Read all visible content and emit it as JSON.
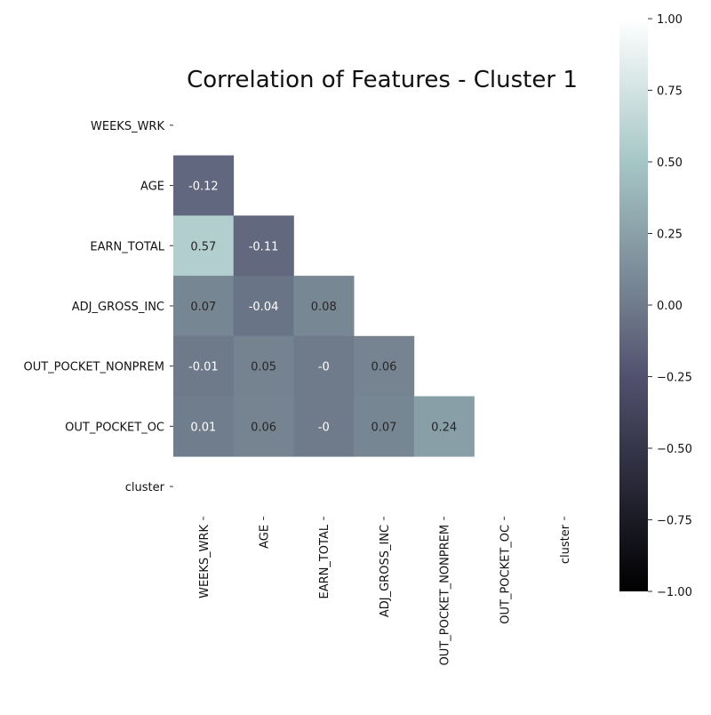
{
  "chart_data": {
    "type": "heatmap",
    "title": "Correlation of Features - Cluster 1",
    "xlabel": "",
    "ylabel": "",
    "row_labels": [
      "WEEKS_WRK",
      "AGE",
      "EARN_TOTAL",
      "ADJ_GROSS_INC",
      "OUT_POCKET_NONPREM",
      "OUT_POCKET_OC",
      "cluster"
    ],
    "col_labels": [
      "WEEKS_WRK",
      "AGE",
      "EARN_TOTAL",
      "ADJ_GROSS_INC",
      "OUT_POCKET_NONPREM",
      "OUT_POCKET_OC",
      "cluster"
    ],
    "cells": [
      {
        "row": 1,
        "col": 0,
        "value": -0.12,
        "label": "-0.12"
      },
      {
        "row": 2,
        "col": 0,
        "value": 0.57,
        "label": "0.57"
      },
      {
        "row": 2,
        "col": 1,
        "value": -0.11,
        "label": "-0.11"
      },
      {
        "row": 3,
        "col": 0,
        "value": 0.07,
        "label": "0.07"
      },
      {
        "row": 3,
        "col": 1,
        "value": -0.04,
        "label": "-0.04"
      },
      {
        "row": 3,
        "col": 2,
        "value": 0.08,
        "label": "0.08"
      },
      {
        "row": 4,
        "col": 0,
        "value": -0.01,
        "label": "-0.01"
      },
      {
        "row": 4,
        "col": 1,
        "value": 0.05,
        "label": "0.05"
      },
      {
        "row": 4,
        "col": 2,
        "value": 0,
        "label": "-0"
      },
      {
        "row": 4,
        "col": 3,
        "value": 0.06,
        "label": "0.06"
      },
      {
        "row": 5,
        "col": 0,
        "value": 0.01,
        "label": "0.01"
      },
      {
        "row": 5,
        "col": 1,
        "value": 0.06,
        "label": "0.06"
      },
      {
        "row": 5,
        "col": 2,
        "value": 0,
        "label": "-0"
      },
      {
        "row": 5,
        "col": 3,
        "value": 0.07,
        "label": "0.07"
      },
      {
        "row": 5,
        "col": 4,
        "value": 0.24,
        "label": "0.24"
      }
    ],
    "vmin": -1,
    "vmax": 1,
    "colormap": "bone",
    "colorbar_ticks": [
      {
        "value": 1.0,
        "label": "1.00"
      },
      {
        "value": 0.75,
        "label": "0.75"
      },
      {
        "value": 0.5,
        "label": "0.50"
      },
      {
        "value": 0.25,
        "label": "0.25"
      },
      {
        "value": 0.0,
        "label": "0.00"
      },
      {
        "value": -0.25,
        "label": "−0.25"
      },
      {
        "value": -0.5,
        "label": "−0.50"
      },
      {
        "value": -0.75,
        "label": "−0.75"
      },
      {
        "value": -1.0,
        "label": "−1.00"
      }
    ],
    "mask": "upper-triangle-and-diagonal",
    "grid": false,
    "legend": "colorbar-right"
  }
}
